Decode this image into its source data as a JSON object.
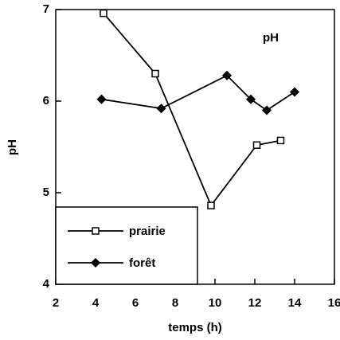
{
  "chart_data": {
    "type": "line",
    "annotation": "pH",
    "xlabel": "temps (h)",
    "ylabel": "pH",
    "xlim": [
      2,
      16
    ],
    "xticks": [
      2,
      4,
      6,
      8,
      10,
      12,
      14,
      16
    ],
    "ylim": [
      4,
      7
    ],
    "yticks": [
      4,
      5,
      6,
      7
    ],
    "legend": "lower left",
    "series": [
      {
        "name": "prairie",
        "color": "#000000",
        "marker": "open-square",
        "x": [
          4.4,
          7.0,
          9.8,
          12.1,
          13.3
        ],
        "values": [
          6.96,
          6.3,
          4.86,
          5.52,
          5.57
        ]
      },
      {
        "name": "forêt",
        "color": "#000000",
        "marker": "filled-diamond",
        "x": [
          4.3,
          7.3,
          10.6,
          11.8,
          12.6,
          14.0
        ],
        "values": [
          6.02,
          5.92,
          6.28,
          6.02,
          5.9,
          6.1
        ]
      }
    ]
  }
}
